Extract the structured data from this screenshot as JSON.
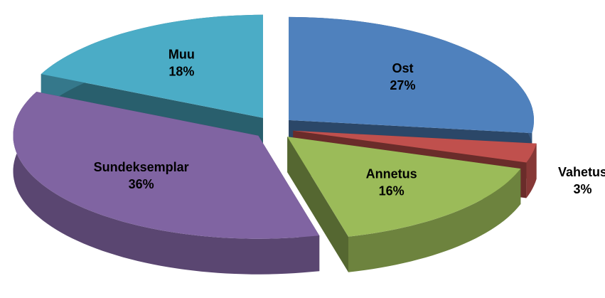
{
  "chart_data": {
    "type": "pie",
    "categories": [
      "Ost",
      "Vahetus",
      "Annetus",
      "Sundeksemplar",
      "Muu"
    ],
    "values": [
      27,
      3,
      16,
      36,
      18
    ],
    "value_labels": [
      "27%",
      "3%",
      "16%",
      "36%",
      "18%"
    ],
    "colors": [
      "#4f81bd",
      "#c0504d",
      "#9bbb59",
      "#8064a2",
      "#4bacc6"
    ]
  }
}
